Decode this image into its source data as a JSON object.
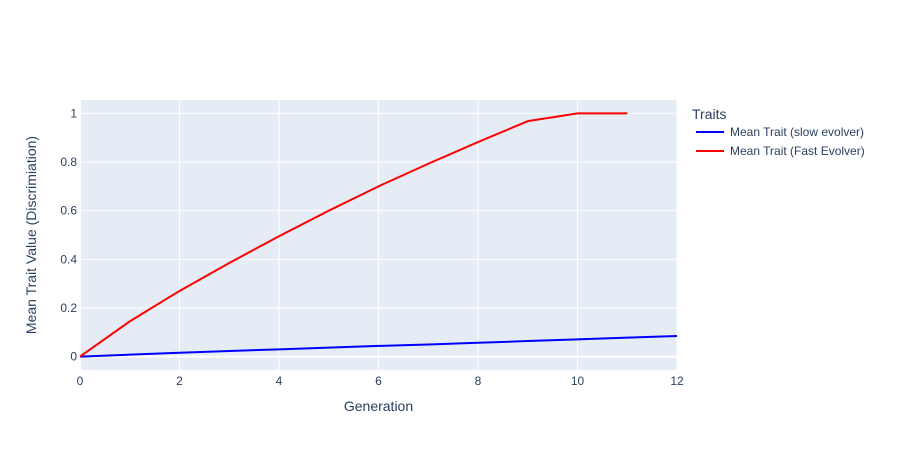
{
  "chart_data": {
    "type": "line",
    "title": "",
    "xlabel": "Generation",
    "ylabel": "Mean Trait Value (Discrimiation)",
    "xlim": [
      0,
      12
    ],
    "ylim": [
      -0.055,
      1.055
    ],
    "x_ticks": [
      0,
      2,
      4,
      6,
      8,
      10,
      12
    ],
    "y_ticks": [
      0,
      0.2,
      0.4,
      0.6,
      0.8,
      1
    ],
    "x_tick_labels": [
      "0",
      "2",
      "4",
      "6",
      "8",
      "10",
      "12"
    ],
    "y_tick_labels": [
      "0",
      "0.2",
      "0.4",
      "0.6",
      "0.8",
      "1"
    ],
    "grid": true,
    "legend": {
      "title": "Traits",
      "placement": "right"
    },
    "series": [
      {
        "name": "Mean Trait (slow evolver)",
        "color": "#0000ff",
        "x": [
          0,
          1,
          2,
          3,
          4,
          5,
          6,
          7,
          8,
          9,
          10,
          11,
          12
        ],
        "y": [
          0,
          0.008,
          0.016,
          0.023,
          0.03,
          0.037,
          0.044,
          0.05,
          0.057,
          0.064,
          0.071,
          0.078,
          0.085
        ]
      },
      {
        "name": "Mean Trait (Fast Evolver)",
        "color": "#ff0000",
        "x": [
          0,
          1,
          2,
          3,
          4,
          5,
          6,
          7,
          8,
          9,
          10,
          11
        ],
        "y": [
          0,
          0.145,
          0.27,
          0.385,
          0.495,
          0.6,
          0.7,
          0.793,
          0.882,
          0.968,
          1.0,
          1.0
        ]
      }
    ],
    "colors": {
      "plot_background": "#e5ecf6",
      "grid": "#ffffff",
      "text": "#2a3f5f"
    }
  }
}
